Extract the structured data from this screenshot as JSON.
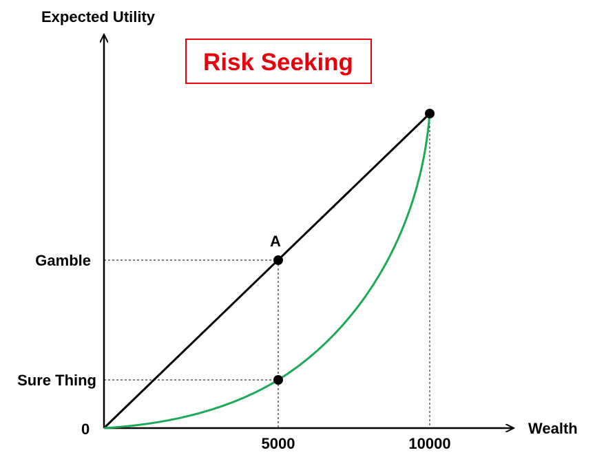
{
  "title": "Risk Seeking",
  "axes": {
    "y_label": "Expected Utility",
    "x_label": "Wealth",
    "origin_label": "0"
  },
  "y_ticks": {
    "gamble": "Gamble",
    "sure_thing": "Sure Thing"
  },
  "x_ticks": {
    "mid": "5000",
    "high": "10000"
  },
  "point_labels": {
    "a": "A"
  },
  "colors": {
    "title_text": "#e8000a",
    "title_border": "#e8000a",
    "utility_curve": "#1aaa55",
    "chord_line": "#000000",
    "guide_lines": "#000000"
  }
}
